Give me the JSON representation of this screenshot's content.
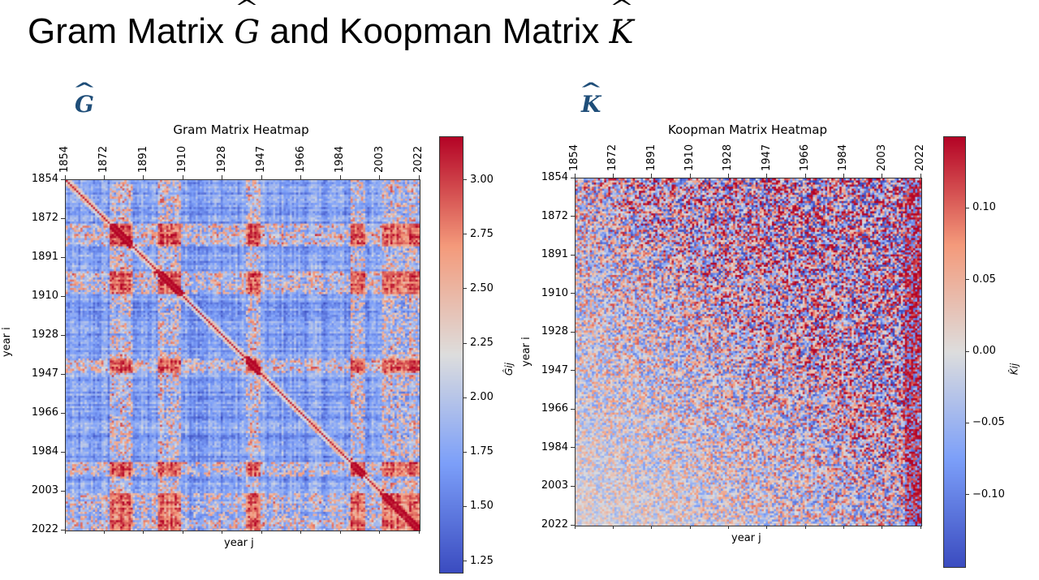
{
  "slide": {
    "title_prefix": "Gram Matrix ",
    "title_sym_g": "G",
    "title_mid": " and Koopman Matrix ",
    "title_sym_k": "K"
  },
  "panels": {
    "left_label": "G",
    "right_label": "K"
  },
  "chart_data": [
    {
      "type": "heatmap",
      "title": "Gram Matrix Heatmap",
      "xlabel": "year j",
      "ylabel": "year i",
      "x_tick_labels": [
        "1854",
        "1872",
        "1891",
        "1910",
        "1928",
        "1947",
        "1966",
        "1984",
        "2003",
        "2022"
      ],
      "y_tick_labels": [
        "1854",
        "1872",
        "1891",
        "1910",
        "1928",
        "1947",
        "1966",
        "1984",
        "2003",
        "2022"
      ],
      "year_range": [
        1854,
        2022
      ],
      "colormap": "coolwarm",
      "colorbar": {
        "label": "Ĝij",
        "range": [
          1.2,
          3.2
        ],
        "tick_labels": [
          "1.25",
          "1.50",
          "1.75",
          "2.00",
          "2.25",
          "2.50",
          "2.75",
          "3.00"
        ],
        "tick_values": [
          1.25,
          1.5,
          1.75,
          2.0,
          2.25,
          2.5,
          2.75,
          3.0
        ]
      },
      "pattern": {
        "baseline": 1.7,
        "diagonal": 3.1,
        "hot_blocks": [
          [
            1875,
            1885
          ],
          [
            1898,
            1908
          ],
          [
            1940,
            1946
          ],
          [
            1990,
            1996
          ],
          [
            2005,
            2022
          ]
        ]
      }
    },
    {
      "type": "heatmap",
      "title": "Koopman Matrix Heatmap",
      "xlabel": "year j",
      "ylabel": "year i",
      "x_tick_labels": [
        "1854",
        "1872",
        "1891",
        "1910",
        "1928",
        "1947",
        "1966",
        "1984",
        "2003",
        "2022"
      ],
      "y_tick_labels": [
        "1854",
        "1872",
        "1891",
        "1910",
        "1928",
        "1947",
        "1966",
        "1984",
        "2003",
        "2022"
      ],
      "year_range": [
        1854,
        2022
      ],
      "colormap": "coolwarm",
      "colorbar": {
        "label": "K̂ij",
        "range": [
          -0.15,
          0.15
        ],
        "tick_labels": [
          "0.10",
          "0.05",
          "0.00",
          "−0.05",
          "−0.10"
        ],
        "tick_values": [
          0.1,
          0.05,
          0.0,
          -0.05,
          -0.1
        ]
      },
      "pattern": {
        "noise_amplitude_upper": 0.15,
        "noise_amplitude_lower": 0.03,
        "hot_last_columns": [
          2015,
          2022
        ]
      }
    }
  ],
  "colors": {
    "panel_label": "#1f4e79",
    "cold": "#3b4cc0",
    "neutral": "#dddddd",
    "hot": "#b40426"
  }
}
